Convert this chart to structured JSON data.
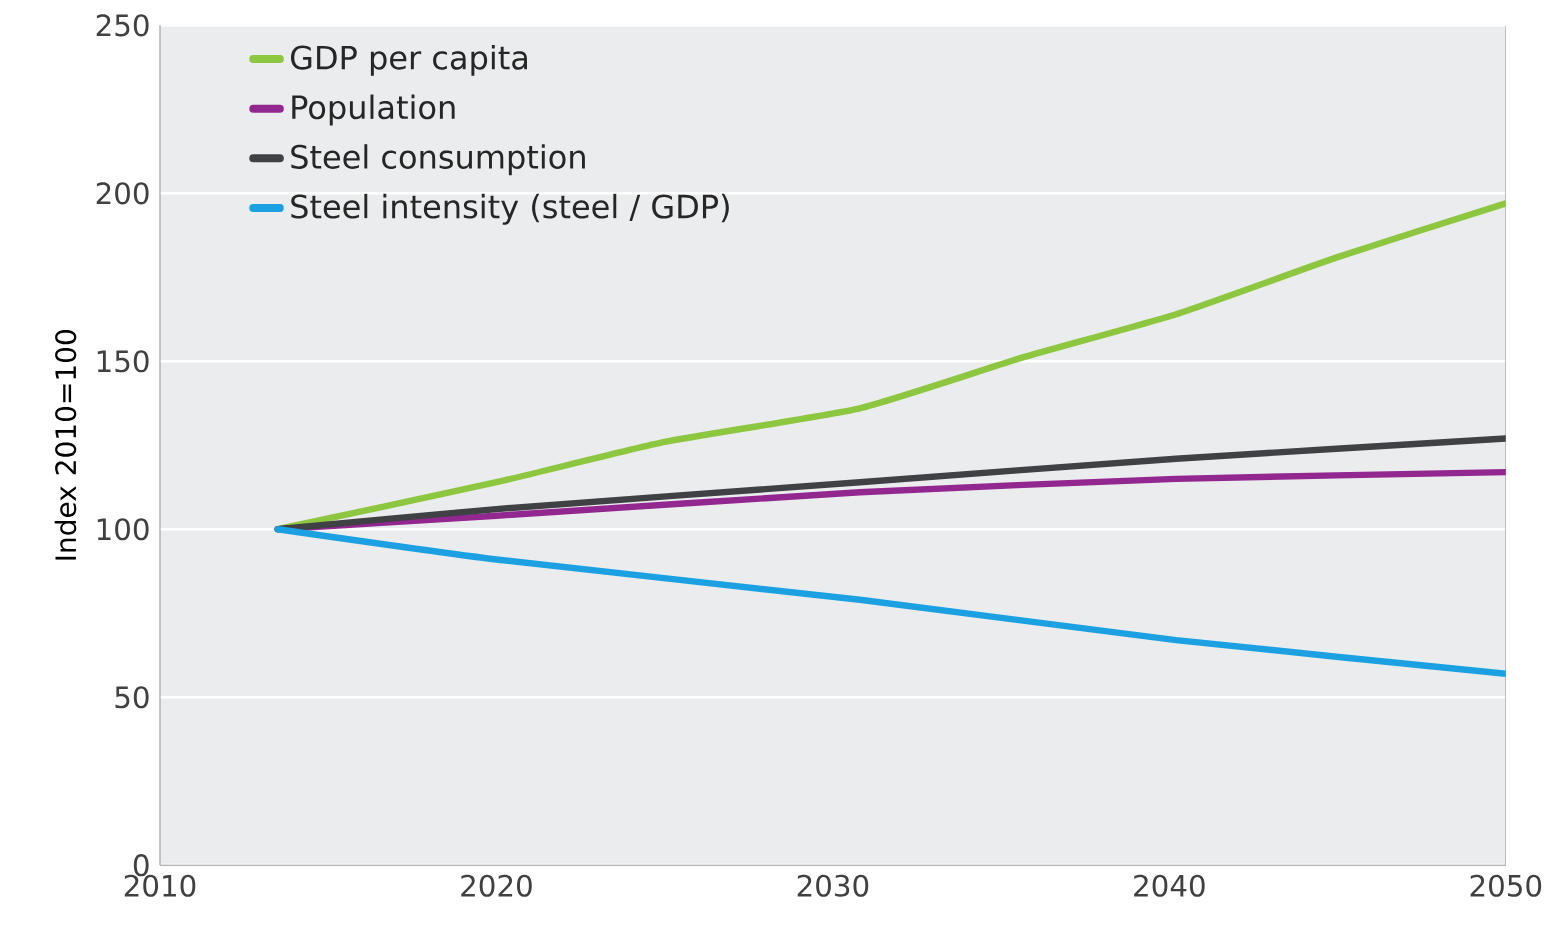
{
  "chart_data": {
    "type": "line",
    "ylabel": "Index 2010=100",
    "series": [
      {
        "name": "GDP per capita",
        "color": "#8dc63f",
        "x": [
          2013.5,
          2020,
          2025,
          2030.8,
          2035.6,
          2040.2,
          2045,
          2050
        ],
        "values": [
          100,
          114,
          126,
          136,
          151,
          164,
          181,
          197
        ]
      },
      {
        "name": "Population",
        "color": "#92278f",
        "x": [
          2013.5,
          2020,
          2030.8,
          2040.2,
          2050
        ],
        "values": [
          100,
          104,
          111,
          115,
          117
        ]
      },
      {
        "name": "Steel consumption",
        "color": "#3f4144",
        "x": [
          2013.5,
          2020,
          2030.8,
          2040.2,
          2050
        ],
        "values": [
          100,
          106,
          114,
          121,
          127
        ]
      },
      {
        "name": "Steel intensity (steel / GDP)",
        "color": "#1ba1e2",
        "x": [
          2013.5,
          2020,
          2030.8,
          2040.2,
          2050
        ],
        "values": [
          100,
          91,
          79,
          67,
          57
        ]
      }
    ],
    "xlim": [
      2010,
      2050
    ],
    "ylim": [
      0,
      250
    ],
    "xticks": [
      2010,
      2020,
      2030,
      2040,
      2050
    ],
    "yticks": [
      0,
      50,
      100,
      150,
      200,
      250
    ],
    "grid": "y",
    "legend": "top left"
  }
}
